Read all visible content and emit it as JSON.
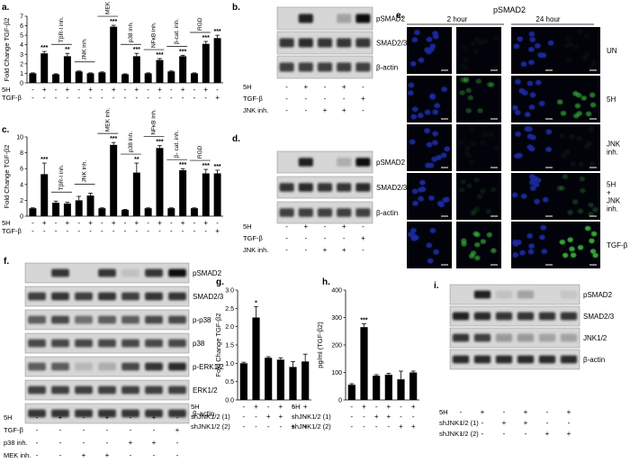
{
  "panels": {
    "a": {
      "label": "a.",
      "ylabel": "Fold Change  TGF-β2",
      "yticks": [
        "0",
        "1",
        "2",
        "3",
        "4",
        "5",
        "6",
        "7"
      ],
      "ymax": 7,
      "values": [
        1.0,
        3.1,
        0.9,
        2.8,
        1.2,
        1.0,
        1.1,
        5.9,
        0.9,
        2.8,
        1.0,
        2.4,
        1.2,
        2.8,
        1.0,
        4.1,
        4.7
      ],
      "errors": [
        0.05,
        0.2,
        0.05,
        0.3,
        0.05,
        0.05,
        0.05,
        0.15,
        0.05,
        0.3,
        0.05,
        0.15,
        0.05,
        0.1,
        0.05,
        0.25,
        0.3
      ],
      "stars": [
        "",
        "***",
        "",
        "**",
        "",
        "",
        "",
        "***",
        "",
        "***",
        "",
        "***",
        "",
        "***",
        "",
        "***",
        "***"
      ],
      "groups": [
        {
          "label": "TβR-I inh.",
          "from": 2,
          "to": 3
        },
        {
          "label": "JNK inh.",
          "from": 4,
          "to": 5
        },
        {
          "label": "MEK inh.",
          "from": 6,
          "to": 7
        },
        {
          "label": "p38 inh.",
          "from": 8,
          "to": 9
        },
        {
          "label": "NFκB inh.",
          "from": 10,
          "to": 11
        },
        {
          "label": "β-cat. inh.",
          "from": 12,
          "to": 13
        },
        {
          "label": "RGD",
          "from": 14,
          "to": 15
        }
      ],
      "rows": [
        {
          "name": "5H",
          "signs": [
            "-",
            "+",
            "-",
            "+",
            "-",
            "+",
            "-",
            "+",
            "-",
            "+",
            "-",
            "+",
            "-",
            "+",
            "-",
            "+",
            "-"
          ]
        },
        {
          "name": "TGF-β",
          "signs": [
            "-",
            "-",
            "-",
            "-",
            "-",
            "-",
            "-",
            "-",
            "-",
            "-",
            "-",
            "-",
            "-",
            "-",
            "-",
            "-",
            "+"
          ]
        }
      ]
    },
    "b": {
      "label": "b.",
      "bands": [
        "pSMAD2",
        "SMAD2/3",
        "β-actin"
      ],
      "rows": [
        {
          "name": "5H",
          "signs": [
            "-",
            "+",
            "-",
            "+",
            "-"
          ]
        },
        {
          "name": "TGF-β",
          "signs": [
            "-",
            "-",
            "-",
            "-",
            "+"
          ]
        },
        {
          "name": "JNK inh.",
          "signs": [
            "-",
            "-",
            "+",
            "+",
            "-"
          ]
        }
      ]
    },
    "c": {
      "label": "c.",
      "ylabel": "Fold Change  TGF-β2",
      "yticks": [
        "0",
        "2",
        "4",
        "6",
        "8",
        "10"
      ],
      "ymax": 10,
      "values": [
        1.0,
        5.3,
        1.7,
        1.6,
        2.0,
        2.6,
        1.0,
        9.0,
        0.8,
        5.5,
        1.0,
        8.6,
        1.0,
        5.8,
        1.0,
        5.4,
        5.4
      ],
      "errors": [
        0.05,
        1.4,
        0.2,
        0.15,
        0.5,
        0.3,
        0.05,
        0.3,
        0.05,
        1.2,
        0.05,
        0.3,
        0.05,
        0.2,
        0.05,
        0.5,
        0.4
      ],
      "stars": [
        "",
        "***",
        "",
        "",
        "",
        "",
        "",
        "***",
        "",
        "**",
        "",
        "***",
        "",
        "***",
        "",
        "***",
        "***"
      ],
      "groups": [
        {
          "label": "TβR-I inh.",
          "from": 2,
          "to": 3
        },
        {
          "label": "JNK inh.",
          "from": 4,
          "to": 5
        },
        {
          "label": "MEK inh.",
          "from": 6,
          "to": 7
        },
        {
          "label": "p38 inh.",
          "from": 8,
          "to": 9
        },
        {
          "label": "NFκB inh.",
          "from": 10,
          "to": 11
        },
        {
          "label": "β- cat. inh.",
          "from": 12,
          "to": 13
        },
        {
          "label": "RGD",
          "from": 14,
          "to": 15
        }
      ],
      "rows": [
        {
          "name": "5H",
          "signs": [
            "-",
            "+",
            "-",
            "+",
            "-",
            "+",
            "-",
            "+",
            "-",
            "+",
            "-",
            "+",
            "-",
            "+",
            "-",
            "+",
            "-"
          ]
        },
        {
          "name": "TGF-β",
          "signs": [
            "-",
            "-",
            "-",
            "-",
            "-",
            "-",
            "-",
            "-",
            "-",
            "-",
            "-",
            "-",
            "-",
            "-",
            "-",
            "-",
            "+"
          ]
        }
      ]
    },
    "d": {
      "label": "d.",
      "bands": [
        "pSMAD2",
        "SMAD2/3",
        "β-actin"
      ],
      "rows": [
        {
          "name": "5H",
          "signs": [
            "-",
            "+",
            "-",
            "+",
            "-"
          ]
        },
        {
          "name": "TGF-β",
          "signs": [
            "-",
            "-",
            "-",
            "-",
            "+"
          ]
        },
        {
          "name": "JNK inh.",
          "signs": [
            "-",
            "-",
            "+",
            "+",
            "-"
          ]
        }
      ]
    },
    "e": {
      "label": "e.",
      "title": "pSMAD2",
      "timepoints": [
        "2 hour",
        "24 hour"
      ],
      "rows": [
        "UN",
        "5H",
        "JNK inh.",
        "5H + JNK inh.",
        "TGF-β"
      ],
      "green_intensity": [
        [
          0.05,
          0.05
        ],
        [
          0.35,
          0.6
        ],
        [
          0.05,
          0.08
        ],
        [
          0.12,
          0.25
        ],
        [
          0.6,
          0.85
        ]
      ],
      "colors": {
        "dapi": "#1c2a9c",
        "green": "#3fbf3f",
        "bg": "#02030a"
      }
    },
    "f": {
      "label": "f.",
      "bands": [
        "pSMAD2",
        "SMAD2/3",
        "p-p38",
        "p38",
        "p-ERK1/2",
        "ERK1/2",
        "β-actin"
      ],
      "rows": [
        {
          "name": "5H",
          "signs": [
            "-",
            "+",
            "-",
            "+",
            "-",
            "+",
            "-"
          ]
        },
        {
          "name": "TGF-β",
          "signs": [
            "-",
            "-",
            "-",
            "-",
            "-",
            "-",
            "+"
          ]
        },
        {
          "name": "p38 inh.",
          "signs": [
            "-",
            "-",
            "-",
            "-",
            "+",
            "+",
            "-"
          ]
        },
        {
          "name": "MEK inh.",
          "signs": [
            "-",
            "-",
            "+",
            "+",
            "-",
            "-",
            "-"
          ]
        }
      ]
    },
    "g": {
      "label": "g.",
      "ylabel": "Fold Change  TGF-β2",
      "yticks": [
        "0.0",
        "0.5",
        "1.0",
        "1.5",
        "2.0",
        "2.5",
        "3.0"
      ],
      "ymax": 3,
      "values": [
        1.0,
        2.25,
        1.15,
        1.1,
        0.9,
        1.05
      ],
      "errors": [
        0.03,
        0.3,
        0.03,
        0.05,
        0.15,
        0.2
      ],
      "stars": [
        "",
        "*",
        "",
        "",
        "",
        ""
      ],
      "rows": [
        {
          "name": "5H",
          "signs": [
            "-",
            "+",
            "-",
            "+",
            "-",
            "+"
          ]
        },
        {
          "name": "shJNK1/2 (1)",
          "signs": [
            "-",
            "-",
            "+",
            "+",
            "-",
            "-"
          ]
        },
        {
          "name": "shJNK1/2 (2)",
          "signs": [
            "-",
            "-",
            "-",
            "-",
            "+",
            "+"
          ]
        }
      ]
    },
    "h": {
      "label": "h.",
      "ylabel": "pg/ml   (TGF-β2)",
      "yticks": [
        "0",
        "100",
        "200",
        "300",
        "400"
      ],
      "ymax": 400,
      "values": [
        55,
        265,
        88,
        92,
        75,
        100
      ],
      "errors": [
        4,
        12,
        4,
        5,
        30,
        5
      ],
      "stars": [
        "",
        "***",
        "",
        "",
        "",
        ""
      ],
      "rows": [
        {
          "name": "5H",
          "signs": [
            "-",
            "+",
            "-",
            "+",
            "-",
            "+"
          ]
        },
        {
          "name": "shJNK1/2 (1)",
          "signs": [
            "-",
            "-",
            "+",
            "+",
            "-",
            "-"
          ]
        },
        {
          "name": "shJNK1/2 (2)",
          "signs": [
            "-",
            "-",
            "-",
            "-",
            "+",
            "+"
          ]
        }
      ]
    },
    "i": {
      "label": "i.",
      "bands": [
        "pSMAD2",
        "SMAD2/3",
        "JNK1/2",
        "β-actin"
      ],
      "rows": [
        {
          "name": "5H",
          "signs": [
            "-",
            "+",
            "-",
            "+",
            "-",
            "+"
          ]
        },
        {
          "name": "shJNK1/2 (1)",
          "signs": [
            "-",
            "-",
            "+",
            "+",
            "-",
            "-"
          ]
        },
        {
          "name": "shJNK1/2 (2)",
          "signs": [
            "-",
            "-",
            "-",
            "-",
            "+",
            "+"
          ]
        }
      ]
    }
  },
  "chart_data": [
    {
      "type": "bar",
      "panel": "a",
      "ylabel": "Fold Change  TGF-β2",
      "ylim": [
        0,
        7
      ],
      "x": [
        1,
        2,
        3,
        4,
        5,
        6,
        7,
        8,
        9,
        10,
        11,
        12,
        13,
        14,
        15,
        16,
        17
      ],
      "values": [
        1.0,
        3.1,
        0.9,
        2.8,
        1.2,
        1.0,
        1.1,
        5.9,
        0.9,
        2.8,
        1.0,
        2.4,
        1.2,
        2.8,
        1.0,
        4.1,
        4.7
      ]
    },
    {
      "type": "bar",
      "panel": "c",
      "ylabel": "Fold Change  TGF-β2",
      "ylim": [
        0,
        10
      ],
      "x": [
        1,
        2,
        3,
        4,
        5,
        6,
        7,
        8,
        9,
        10,
        11,
        12,
        13,
        14,
        15,
        16,
        17
      ],
      "values": [
        1.0,
        5.3,
        1.7,
        1.6,
        2.0,
        2.6,
        1.0,
        9.0,
        0.8,
        5.5,
        1.0,
        8.6,
        1.0,
        5.8,
        1.0,
        5.4,
        5.4
      ]
    },
    {
      "type": "bar",
      "panel": "g",
      "ylabel": "Fold Change  TGF-β2",
      "ylim": [
        0,
        3
      ],
      "x": [
        1,
        2,
        3,
        4,
        5,
        6
      ],
      "values": [
        1.0,
        2.25,
        1.15,
        1.1,
        0.9,
        1.05
      ]
    },
    {
      "type": "bar",
      "panel": "h",
      "ylabel": "pg/ml   (TGF-β2)",
      "ylim": [
        0,
        400
      ],
      "x": [
        1,
        2,
        3,
        4,
        5,
        6
      ],
      "values": [
        55,
        265,
        88,
        92,
        75,
        100
      ]
    }
  ]
}
